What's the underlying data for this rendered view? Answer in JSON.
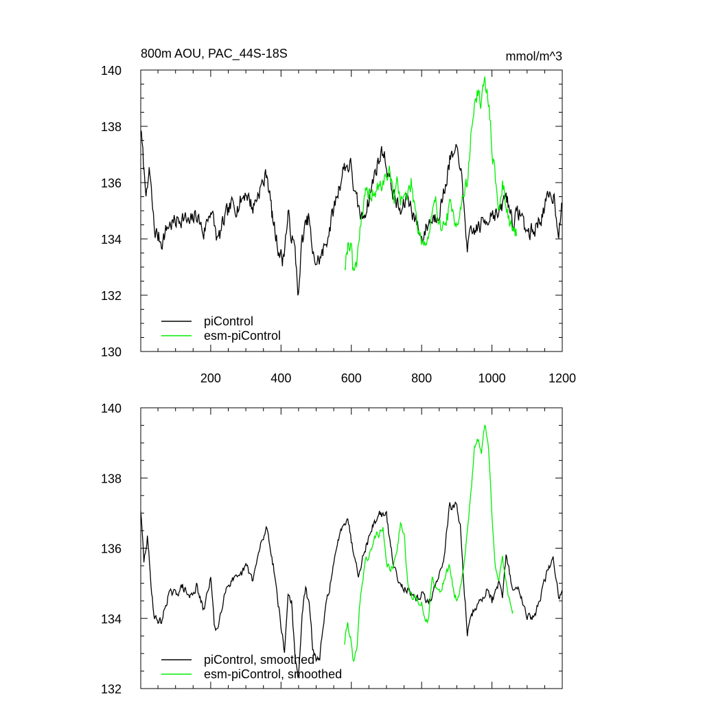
{
  "figure": {
    "title_left": "800m AOU, PAC_44S-18S",
    "title_right": "mmol/m^3"
  },
  "chart_data": [
    {
      "type": "line",
      "title": "800m AOU, PAC_44S-18S",
      "units": "mmol/m^3",
      "xlim": [
        1,
        1200
      ],
      "ylim": [
        130,
        140
      ],
      "xticks": [
        200,
        400,
        600,
        800,
        1000,
        1200
      ],
      "xtick_labels": [
        "200",
        "400",
        "600",
        "800",
        "1000",
        "1200"
      ],
      "yticks": [
        130,
        132,
        134,
        136,
        138,
        140
      ],
      "ytick_labels": [
        "130",
        "132",
        "134",
        "136",
        "138",
        "140"
      ],
      "legend_position": "bottom-left",
      "series": [
        {
          "name": "piControl",
          "color": "#000000",
          "noise": 0.55,
          "seed": 7,
          "points": [
            [
              1,
              138.0
            ],
            [
              10,
              136.4
            ],
            [
              20,
              135.5
            ],
            [
              25,
              136.5
            ],
            [
              40,
              134.3
            ],
            [
              60,
              133.9
            ],
            [
              80,
              134.5
            ],
            [
              100,
              134.6
            ],
            [
              120,
              134.8
            ],
            [
              140,
              134.5
            ],
            [
              160,
              134.9
            ],
            [
              180,
              134.2
            ],
            [
              200,
              135.1
            ],
            [
              220,
              133.9
            ],
            [
              240,
              134.7
            ],
            [
              260,
              135.2
            ],
            [
              280,
              135.2
            ],
            [
              300,
              135.7
            ],
            [
              320,
              135.1
            ],
            [
              340,
              135.8
            ],
            [
              350,
              136.0
            ],
            [
              360,
              136.4
            ],
            [
              375,
              134.8
            ],
            [
              390,
              133.8
            ],
            [
              405,
              133.2
            ],
            [
              420,
              134.8
            ],
            [
              440,
              133.5
            ],
            [
              450,
              132.0
            ],
            [
              460,
              134.0
            ],
            [
              480,
              134.8
            ],
            [
              490,
              133.3
            ],
            [
              505,
              133.2
            ],
            [
              520,
              133.5
            ],
            [
              540,
              134.5
            ],
            [
              560,
              135.6
            ],
            [
              580,
              136.6
            ],
            [
              600,
              136.6
            ],
            [
              610,
              135.5
            ],
            [
              630,
              134.7
            ],
            [
              650,
              135.4
            ],
            [
              670,
              136.5
            ],
            [
              690,
              137.2
            ],
            [
              700,
              136.6
            ],
            [
              720,
              135.6
            ],
            [
              740,
              134.9
            ],
            [
              760,
              135.5
            ],
            [
              780,
              134.8
            ],
            [
              800,
              134.0
            ],
            [
              820,
              134.6
            ],
            [
              840,
              134.8
            ],
            [
              860,
              135.4
            ],
            [
              880,
              136.8
            ],
            [
              900,
              137.0
            ],
            [
              910,
              136.8
            ],
            [
              920,
              135.0
            ],
            [
              930,
              133.8
            ],
            [
              950,
              134.3
            ],
            [
              970,
              134.5
            ],
            [
              990,
              134.8
            ],
            [
              1000,
              135.0
            ],
            [
              1020,
              134.8
            ],
            [
              1040,
              135.6
            ],
            [
              1060,
              134.6
            ],
            [
              1080,
              135.0
            ],
            [
              1100,
              134.2
            ],
            [
              1120,
              134.3
            ],
            [
              1140,
              134.8
            ],
            [
              1160,
              135.4
            ],
            [
              1175,
              135.6
            ],
            [
              1190,
              134.3
            ],
            [
              1200,
              135.2
            ]
          ]
        },
        {
          "name": "esm-piControl",
          "color": "#00ee00",
          "noise": 0.55,
          "seed": 19,
          "points": [
            [
              581,
              133.1
            ],
            [
              590,
              133.8
            ],
            [
              600,
              133.9
            ],
            [
              605,
              132.8
            ],
            [
              615,
              133.2
            ],
            [
              625,
              134.5
            ],
            [
              640,
              135.5
            ],
            [
              660,
              135.6
            ],
            [
              680,
              135.8
            ],
            [
              700,
              136.2
            ],
            [
              710,
              136.5
            ],
            [
              720,
              135.3
            ],
            [
              730,
              136.0
            ],
            [
              740,
              135.5
            ],
            [
              760,
              135.5
            ],
            [
              770,
              136.0
            ],
            [
              790,
              134.5
            ],
            [
              800,
              134.0
            ],
            [
              815,
              133.8
            ],
            [
              830,
              134.8
            ],
            [
              840,
              135.2
            ],
            [
              850,
              134.8
            ],
            [
              860,
              134.3
            ],
            [
              880,
              135.1
            ],
            [
              890,
              134.8
            ],
            [
              900,
              134.7
            ],
            [
              910,
              135.0
            ],
            [
              920,
              135.6
            ],
            [
              930,
              136.0
            ],
            [
              940,
              137.6
            ],
            [
              950,
              138.8
            ],
            [
              960,
              139.2
            ],
            [
              970,
              138.8
            ],
            [
              980,
              139.5
            ],
            [
              990,
              139.0
            ],
            [
              1000,
              137.3
            ],
            [
              1010,
              136.0
            ],
            [
              1020,
              135.0
            ],
            [
              1030,
              135.9
            ],
            [
              1040,
              135.4
            ],
            [
              1050,
              134.6
            ],
            [
              1070,
              134.1
            ]
          ]
        }
      ]
    },
    {
      "type": "line",
      "title": "",
      "xlim": [
        1,
        1200
      ],
      "ylim": [
        132,
        140
      ],
      "yticks": [
        132,
        134,
        136,
        138,
        140
      ],
      "ytick_labels": [
        "132",
        "134",
        "136",
        "138",
        "140"
      ],
      "legend_position": "bottom-left",
      "series": [
        {
          "name": "piControl, smoothed",
          "color": "#000000",
          "noise": 0.2,
          "seed": 29,
          "points": [
            [
              1,
              137.1
            ],
            [
              10,
              135.6
            ],
            [
              20,
              136.3
            ],
            [
              30,
              135.0
            ],
            [
              40,
              134.0
            ],
            [
              60,
              133.9
            ],
            [
              80,
              134.7
            ],
            [
              100,
              134.7
            ],
            [
              120,
              134.9
            ],
            [
              140,
              134.6
            ],
            [
              160,
              134.9
            ],
            [
              180,
              134.2
            ],
            [
              200,
              135.2
            ],
            [
              210,
              133.8
            ],
            [
              220,
              133.7
            ],
            [
              240,
              134.8
            ],
            [
              260,
              135.1
            ],
            [
              280,
              135.1
            ],
            [
              300,
              135.5
            ],
            [
              320,
              135.1
            ],
            [
              340,
              136.0
            ],
            [
              350,
              136.3
            ],
            [
              360,
              136.6
            ],
            [
              380,
              135.4
            ],
            [
              400,
              133.8
            ],
            [
              410,
              133.0
            ],
            [
              420,
              134.7
            ],
            [
              430,
              134.5
            ],
            [
              440,
              132.8
            ],
            [
              450,
              132.3
            ],
            [
              460,
              134.2
            ],
            [
              470,
              134.8
            ],
            [
              480,
              134.4
            ],
            [
              490,
              133.2
            ],
            [
              500,
              132.8
            ],
            [
              510,
              132.9
            ],
            [
              530,
              134.5
            ],
            [
              550,
              135.5
            ],
            [
              570,
              136.6
            ],
            [
              590,
              136.9
            ],
            [
              600,
              136.2
            ],
            [
              620,
              135.3
            ],
            [
              640,
              136.0
            ],
            [
              660,
              136.6
            ],
            [
              680,
              137.0
            ],
            [
              700,
              136.9
            ],
            [
              720,
              135.5
            ],
            [
              740,
              135.0
            ],
            [
              760,
              134.8
            ],
            [
              780,
              134.5
            ],
            [
              800,
              134.7
            ],
            [
              820,
              134.4
            ],
            [
              840,
              135.0
            ],
            [
              860,
              135.5
            ],
            [
              880,
              137.2
            ],
            [
              900,
              137.2
            ],
            [
              910,
              136.6
            ],
            [
              920,
              135.0
            ],
            [
              930,
              133.6
            ],
            [
              950,
              134.3
            ],
            [
              970,
              134.5
            ],
            [
              990,
              134.9
            ],
            [
              1000,
              134.5
            ],
            [
              1020,
              135.0
            ],
            [
              1030,
              134.5
            ],
            [
              1040,
              135.8
            ],
            [
              1060,
              134.8
            ],
            [
              1080,
              134.8
            ],
            [
              1100,
              134.1
            ],
            [
              1120,
              134.0
            ],
            [
              1140,
              134.7
            ],
            [
              1160,
              135.4
            ],
            [
              1175,
              135.7
            ],
            [
              1190,
              134.6
            ],
            [
              1200,
              134.8
            ]
          ]
        },
        {
          "name": "esm-piControl, smoothed",
          "color": "#00ee00",
          "noise": 0.2,
          "seed": 41,
          "points": [
            [
              581,
              133.3
            ],
            [
              590,
              133.9
            ],
            [
              600,
              133.3
            ],
            [
              605,
              132.7
            ],
            [
              615,
              133.0
            ],
            [
              625,
              134.5
            ],
            [
              640,
              135.7
            ],
            [
              650,
              135.7
            ],
            [
              670,
              136.4
            ],
            [
              690,
              136.5
            ],
            [
              700,
              135.5
            ],
            [
              720,
              135.4
            ],
            [
              740,
              136.7
            ],
            [
              750,
              136.5
            ],
            [
              760,
              135.0
            ],
            [
              770,
              134.6
            ],
            [
              790,
              134.5
            ],
            [
              800,
              134.5
            ],
            [
              810,
              133.8
            ],
            [
              820,
              134.0
            ],
            [
              830,
              135.3
            ],
            [
              840,
              134.9
            ],
            [
              850,
              134.7
            ],
            [
              860,
              135.0
            ],
            [
              880,
              135.5
            ],
            [
              890,
              134.8
            ],
            [
              900,
              134.5
            ],
            [
              910,
              134.9
            ],
            [
              920,
              135.5
            ],
            [
              930,
              136.5
            ],
            [
              940,
              137.6
            ],
            [
              950,
              138.8
            ],
            [
              960,
              139.1
            ],
            [
              970,
              138.8
            ],
            [
              980,
              139.5
            ],
            [
              990,
              138.9
            ],
            [
              1000,
              137.0
            ],
            [
              1010,
              135.5
            ],
            [
              1020,
              135.0
            ],
            [
              1030,
              135.7
            ],
            [
              1040,
              135.1
            ],
            [
              1050,
              134.5
            ],
            [
              1060,
              134.2
            ]
          ]
        }
      ]
    }
  ]
}
